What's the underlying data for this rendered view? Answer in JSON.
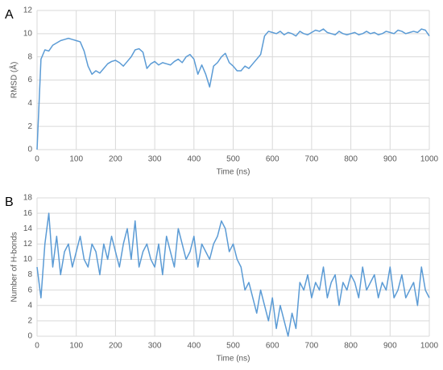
{
  "chart_data": [
    {
      "type": "line",
      "panel_label": "A",
      "x_label": "Time (ns)",
      "y_label": "RMSD (Å)",
      "x": [
        0,
        10,
        20,
        30,
        40,
        50,
        60,
        70,
        80,
        90,
        100,
        110,
        120,
        130,
        140,
        150,
        160,
        170,
        180,
        190,
        200,
        210,
        220,
        230,
        240,
        250,
        260,
        270,
        280,
        290,
        300,
        310,
        320,
        330,
        340,
        350,
        360,
        370,
        380,
        390,
        400,
        410,
        420,
        430,
        440,
        450,
        460,
        470,
        480,
        490,
        500,
        510,
        520,
        530,
        540,
        550,
        560,
        570,
        580,
        590,
        600,
        610,
        620,
        630,
        640,
        650,
        660,
        670,
        680,
        690,
        700,
        710,
        720,
        730,
        740,
        750,
        760,
        770,
        780,
        790,
        800,
        810,
        820,
        830,
        840,
        850,
        860,
        870,
        880,
        890,
        900,
        910,
        920,
        930,
        940,
        950,
        960,
        970,
        980,
        990,
        1000
      ],
      "series": [
        {
          "name": null,
          "color": "#5b9bd5",
          "values": [
            0,
            7.8,
            8.6,
            8.5,
            9.0,
            9.2,
            9.4,
            9.5,
            9.6,
            9.5,
            9.4,
            9.3,
            8.5,
            7.2,
            6.5,
            6.8,
            6.6,
            7.0,
            7.4,
            7.6,
            7.7,
            7.5,
            7.2,
            7.6,
            8.0,
            8.6,
            8.7,
            8.4,
            7.0,
            7.4,
            7.6,
            7.3,
            7.5,
            7.4,
            7.3,
            7.6,
            7.8,
            7.5,
            8.0,
            8.2,
            7.8,
            6.5,
            7.3,
            6.5,
            5.4,
            7.2,
            7.5,
            8.0,
            8.3,
            7.5,
            7.2,
            6.8,
            6.8,
            7.2,
            7.0,
            7.4,
            7.8,
            8.2,
            9.8,
            10.2,
            10.1,
            10.0,
            10.2,
            9.9,
            10.1,
            10.0,
            9.8,
            10.2,
            10.0,
            9.9,
            10.1,
            10.3,
            10.2,
            10.4,
            10.1,
            10.0,
            9.9,
            10.2,
            10.0,
            9.9,
            10.0,
            10.1,
            9.9,
            10.0,
            10.2,
            10.0,
            10.1,
            9.9,
            10.0,
            10.2,
            10.1,
            10.0,
            10.3,
            10.2,
            10.0,
            10.1,
            10.2,
            10.1,
            10.4,
            10.3,
            9.8
          ]
        }
      ],
      "xlim": [
        0,
        1000
      ],
      "xticks": [
        0,
        100,
        200,
        300,
        400,
        500,
        600,
        700,
        800,
        900,
        1000
      ],
      "ylim": [
        0,
        12
      ],
      "yticks": [
        0,
        2,
        4,
        6,
        8,
        10,
        12
      ],
      "grid": true
    },
    {
      "type": "line",
      "panel_label": "B",
      "x_label": "Time (ns)",
      "y_label": "Number of H-bonds",
      "x": [
        0,
        10,
        20,
        30,
        40,
        50,
        60,
        70,
        80,
        90,
        100,
        110,
        120,
        130,
        140,
        150,
        160,
        170,
        180,
        190,
        200,
        210,
        220,
        230,
        240,
        250,
        260,
        270,
        280,
        290,
        300,
        310,
        320,
        330,
        340,
        350,
        360,
        370,
        380,
        390,
        400,
        410,
        420,
        430,
        440,
        450,
        460,
        470,
        480,
        490,
        500,
        510,
        520,
        530,
        540,
        550,
        560,
        570,
        580,
        590,
        600,
        610,
        620,
        630,
        640,
        650,
        660,
        670,
        680,
        690,
        700,
        710,
        720,
        730,
        740,
        750,
        760,
        770,
        780,
        790,
        800,
        810,
        820,
        830,
        840,
        850,
        860,
        870,
        880,
        890,
        900,
        910,
        920,
        930,
        940,
        950,
        960,
        970,
        980,
        990,
        1000
      ],
      "series": [
        {
          "name": null,
          "color": "#5b9bd5",
          "values": [
            9,
            5,
            12,
            16,
            9,
            13,
            8,
            11,
            12,
            9,
            11,
            13,
            10,
            9,
            12,
            11,
            8,
            12,
            10,
            13,
            11,
            9,
            12,
            14,
            10,
            15,
            9,
            11,
            12,
            10,
            9,
            12,
            8,
            13,
            11,
            9,
            14,
            12,
            10,
            11,
            13,
            9,
            12,
            11,
            10,
            12,
            13,
            15,
            14,
            11,
            12,
            10,
            9,
            6,
            7,
            5,
            3,
            6,
            4,
            2,
            5,
            1,
            4,
            2,
            0,
            3,
            1,
            7,
            6,
            8,
            5,
            7,
            6,
            9,
            5,
            7,
            8,
            4,
            7,
            6,
            8,
            7,
            5,
            9,
            6,
            7,
            8,
            5,
            7,
            6,
            9,
            5,
            6,
            8,
            5,
            6,
            7,
            4,
            9,
            6,
            5
          ]
        }
      ],
      "xlim": [
        0,
        1000
      ],
      "xticks": [
        0,
        100,
        200,
        300,
        400,
        500,
        600,
        700,
        800,
        900,
        1000
      ],
      "ylim": [
        0,
        18
      ],
      "yticks": [
        0,
        2,
        4,
        6,
        8,
        10,
        12,
        14,
        16,
        18
      ],
      "grid": true
    }
  ]
}
